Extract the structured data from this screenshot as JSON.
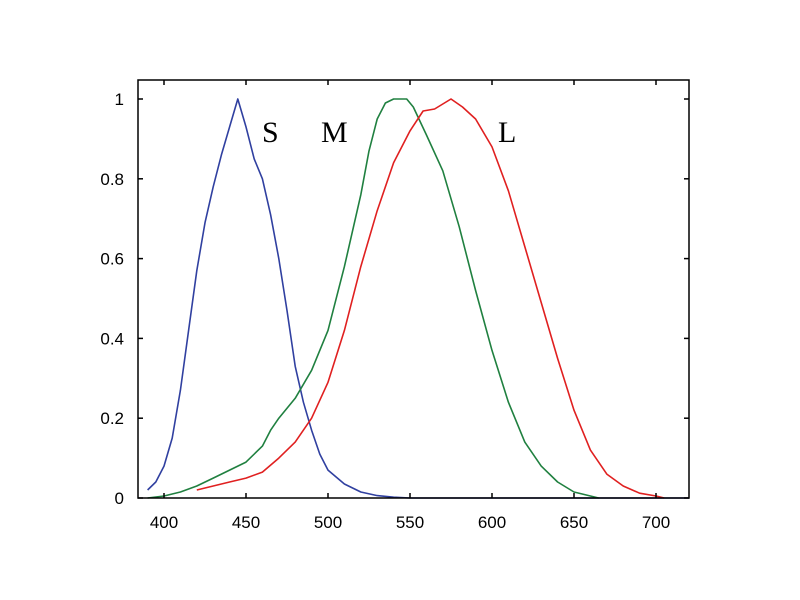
{
  "chart_data": {
    "type": "line",
    "title": "",
    "xlabel": "",
    "ylabel": "",
    "xlim": [
      385,
      722
    ],
    "ylim": [
      0,
      1.05
    ],
    "grid": false,
    "legend": "inline labels",
    "x_ticks": [
      400,
      450,
      500,
      550,
      600,
      650,
      700
    ],
    "y_ticks": [
      0,
      0.2,
      0.4,
      0.6,
      0.8,
      1
    ],
    "y_tick_labels": [
      "0",
      "0.2",
      "0.4",
      "0.6",
      "0.8",
      "1"
    ],
    "annotations": [
      {
        "text": "S",
        "x": 461,
        "y": 0.93
      },
      {
        "text": "M",
        "x": 509,
        "y": 0.93
      },
      {
        "text": "L",
        "x": 610,
        "y": 0.93
      }
    ],
    "series": [
      {
        "name": "S",
        "color": "#3040a0",
        "points": [
          [
            390,
            0.02
          ],
          [
            395,
            0.04
          ],
          [
            400,
            0.08
          ],
          [
            405,
            0.15
          ],
          [
            410,
            0.27
          ],
          [
            415,
            0.42
          ],
          [
            420,
            0.57
          ],
          [
            425,
            0.69
          ],
          [
            430,
            0.78
          ],
          [
            435,
            0.86
          ],
          [
            440,
            0.93
          ],
          [
            445,
            1.0
          ],
          [
            450,
            0.93
          ],
          [
            455,
            0.85
          ],
          [
            460,
            0.8
          ],
          [
            465,
            0.71
          ],
          [
            470,
            0.6
          ],
          [
            475,
            0.47
          ],
          [
            480,
            0.33
          ],
          [
            485,
            0.24
          ],
          [
            490,
            0.17
          ],
          [
            495,
            0.11
          ],
          [
            500,
            0.07
          ],
          [
            510,
            0.035
          ],
          [
            520,
            0.015
          ],
          [
            530,
            0.006
          ],
          [
            540,
            0.002
          ],
          [
            550,
            0
          ],
          [
            600,
            0
          ],
          [
            650,
            0
          ],
          [
            700,
            0
          ],
          [
            722,
            0
          ]
        ]
      },
      {
        "name": "M",
        "color": "#208040",
        "points": [
          [
            390,
            0.0
          ],
          [
            400,
            0.005
          ],
          [
            410,
            0.015
          ],
          [
            420,
            0.03
          ],
          [
            430,
            0.05
          ],
          [
            440,
            0.07
          ],
          [
            450,
            0.09
          ],
          [
            460,
            0.13
          ],
          [
            465,
            0.17
          ],
          [
            470,
            0.2
          ],
          [
            480,
            0.25
          ],
          [
            490,
            0.32
          ],
          [
            500,
            0.42
          ],
          [
            510,
            0.58
          ],
          [
            520,
            0.76
          ],
          [
            525,
            0.87
          ],
          [
            530,
            0.95
          ],
          [
            535,
            0.99
          ],
          [
            540,
            1.0
          ],
          [
            548,
            1.0
          ],
          [
            552,
            0.98
          ],
          [
            560,
            0.91
          ],
          [
            570,
            0.82
          ],
          [
            580,
            0.68
          ],
          [
            590,
            0.52
          ],
          [
            600,
            0.37
          ],
          [
            610,
            0.24
          ],
          [
            620,
            0.14
          ],
          [
            630,
            0.08
          ],
          [
            640,
            0.04
          ],
          [
            650,
            0.015
          ],
          [
            660,
            0.005
          ],
          [
            665,
            0.0
          ]
        ]
      },
      {
        "name": "L",
        "color": "#e02020",
        "points": [
          [
            420,
            0.02
          ],
          [
            430,
            0.03
          ],
          [
            440,
            0.04
          ],
          [
            450,
            0.05
          ],
          [
            460,
            0.065
          ],
          [
            470,
            0.1
          ],
          [
            480,
            0.14
          ],
          [
            490,
            0.2
          ],
          [
            500,
            0.29
          ],
          [
            510,
            0.42
          ],
          [
            520,
            0.58
          ],
          [
            530,
            0.72
          ],
          [
            540,
            0.84
          ],
          [
            550,
            0.92
          ],
          [
            558,
            0.97
          ],
          [
            565,
            0.975
          ],
          [
            575,
            1.0
          ],
          [
            582,
            0.98
          ],
          [
            590,
            0.95
          ],
          [
            600,
            0.88
          ],
          [
            610,
            0.77
          ],
          [
            620,
            0.63
          ],
          [
            630,
            0.49
          ],
          [
            640,
            0.35
          ],
          [
            650,
            0.22
          ],
          [
            660,
            0.12
          ],
          [
            670,
            0.06
          ],
          [
            680,
            0.03
          ],
          [
            690,
            0.012
          ],
          [
            700,
            0.005
          ],
          [
            705,
            0.0
          ]
        ]
      }
    ]
  }
}
